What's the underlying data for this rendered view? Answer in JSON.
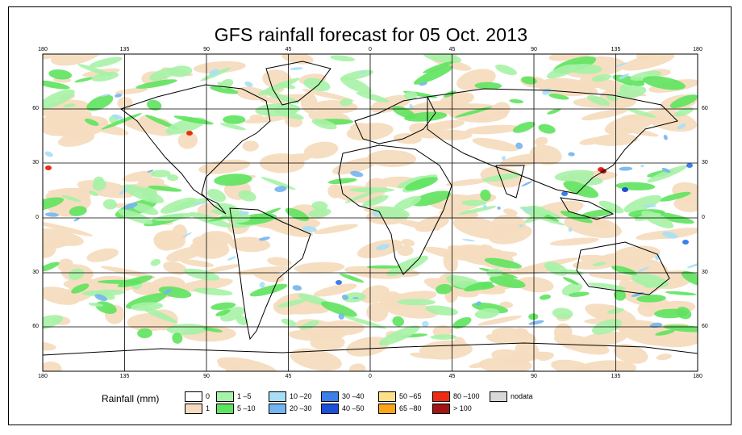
{
  "title": "GFS rainfall forecast for 05 Oct. 2013",
  "axes": {
    "top_lon": [
      "180",
      "135",
      "90",
      "45",
      "0",
      "45",
      "90",
      "135",
      "180"
    ],
    "bottom_lon": [
      "180",
      "135",
      "90",
      "45",
      "0",
      "45",
      "90",
      "135",
      "180"
    ],
    "left_lat": [
      "60",
      "30",
      "0",
      "30",
      "60"
    ],
    "right_lat": [
      "60",
      "30",
      "0",
      "30",
      "60"
    ]
  },
  "legend": {
    "title": "Rainfall (mm)",
    "items": [
      {
        "label": "0",
        "color": "#ffffff"
      },
      {
        "label": "1",
        "color": "#f5dcbf"
      },
      {
        "label": "1 –5",
        "color": "#a6f2a6"
      },
      {
        "label": "5 –10",
        "color": "#5ee35e"
      },
      {
        "label": "10 –20",
        "color": "#a8dff7"
      },
      {
        "label": "20 –30",
        "color": "#73b5f0"
      },
      {
        "label": "30 –40",
        "color": "#3b7fea"
      },
      {
        "label": "40 –50",
        "color": "#1c4fd8"
      },
      {
        "label": "50 –65",
        "color": "#fde089"
      },
      {
        "label": "65 –80",
        "color": "#f9a517"
      },
      {
        "label": "80 –100",
        "color": "#ee2a12"
      },
      {
        "label": "> 100",
        "color": "#a01414"
      },
      {
        "label": "nodata",
        "color": "#d8d8d8"
      }
    ]
  }
}
